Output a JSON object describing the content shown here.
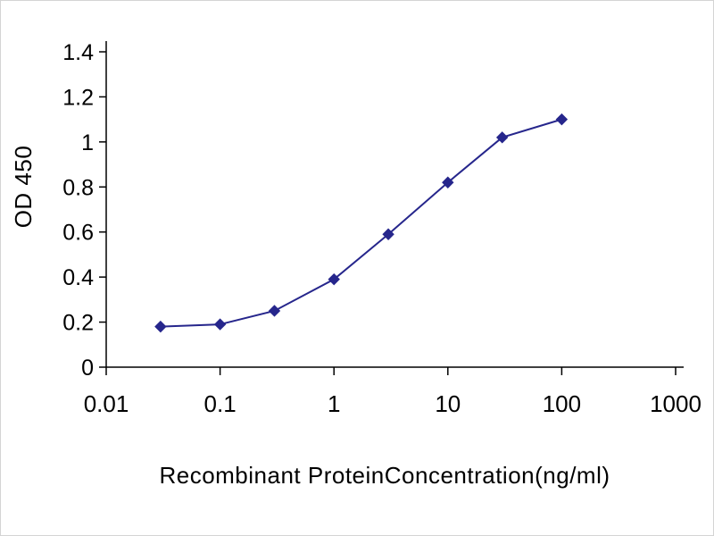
{
  "figure": {
    "background": "#ffffff",
    "border_color": "#d4d4d4"
  },
  "chart_data": {
    "type": "line",
    "x_scale": "log",
    "x": [
      0.03,
      0.1,
      0.3,
      1,
      3,
      10,
      30,
      100
    ],
    "y": [
      0.18,
      0.19,
      0.25,
      0.39,
      0.59,
      0.82,
      1.02,
      1.1
    ],
    "title": "",
    "xlabel": "Recombinant ProteinConcentration(ng/ml)",
    "ylabel": "OD 450",
    "xlim": [
      0.01,
      1000
    ],
    "ylim": [
      0,
      1.4
    ],
    "x_ticks": [
      "0.01",
      "0.1",
      "1",
      "10",
      "100",
      "1000"
    ],
    "y_ticks": [
      "0",
      "0.2",
      "0.4",
      "0.6",
      "0.8",
      "1",
      "1.2",
      "1.4"
    ],
    "grid": false,
    "legend": null,
    "marker": "diamond",
    "line_color": "#26268c",
    "axis_color": "#000000"
  }
}
